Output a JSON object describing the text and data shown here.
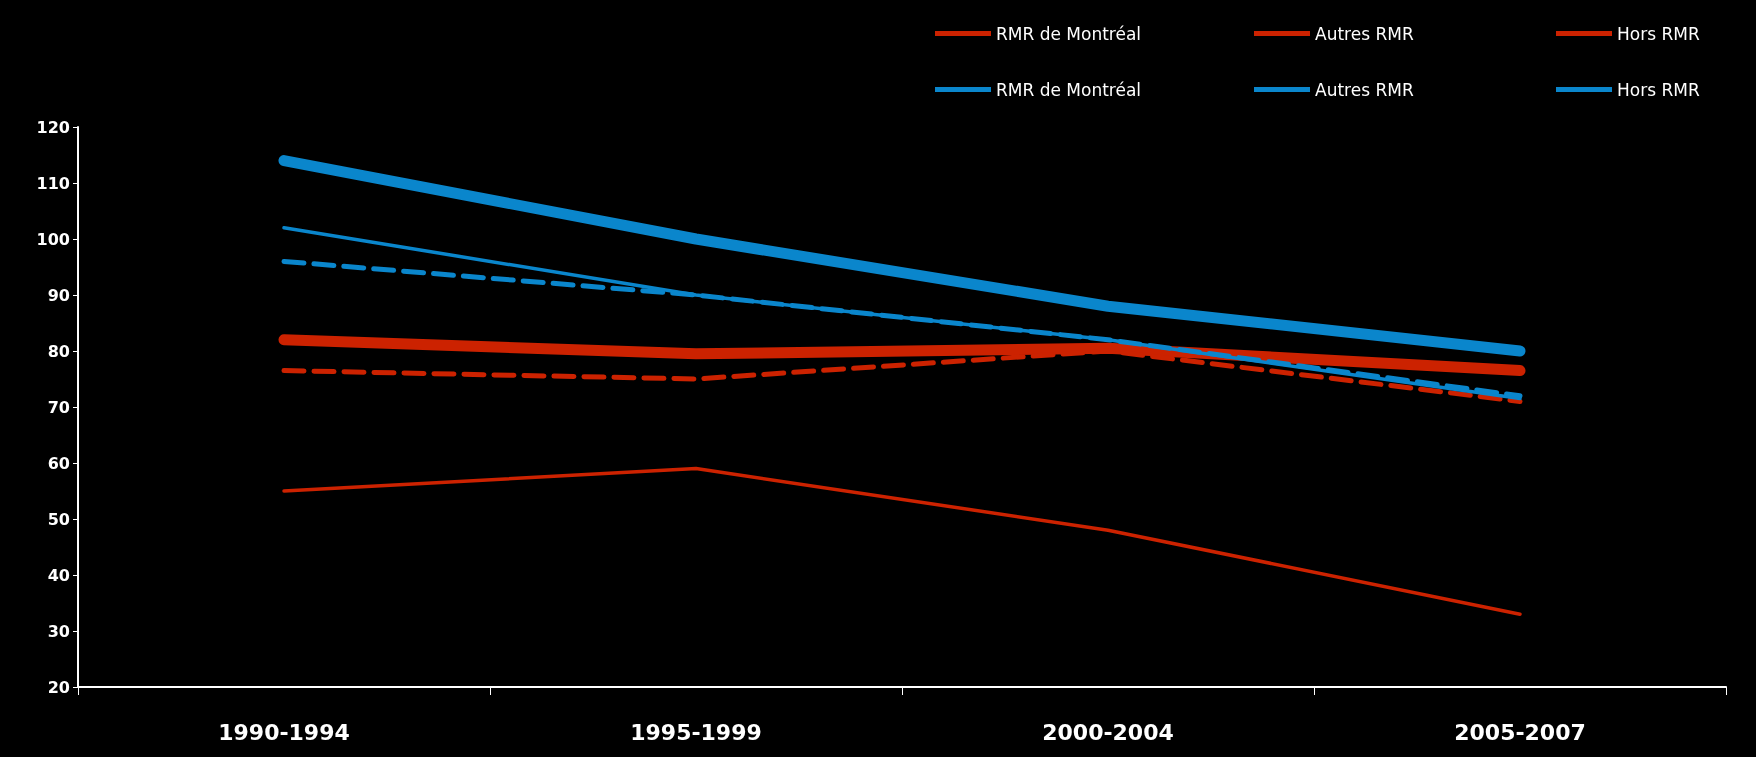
{
  "chart_data": {
    "type": "line",
    "categories": [
      "1990-1994",
      "1995-1999",
      "2000-2004",
      "2005-2007"
    ],
    "series": [
      {
        "name": "RMR de Montréal",
        "color": "#cc2200",
        "line_style": "solid",
        "values": [
          82,
          79.5,
          80.5,
          76.5
        ]
      },
      {
        "name": "Autres RMR",
        "color": "#cc2200",
        "line_style": "solid",
        "values": [
          55,
          59,
          48,
          33
        ]
      },
      {
        "name": "Hors RMR",
        "color": "#cc2200",
        "line_style": "dashed",
        "values": [
          76.5,
          75,
          80,
          71
        ]
      },
      {
        "name": "RMR de Montréal",
        "color": "#0a86cc",
        "line_style": "solid",
        "values": [
          114,
          100,
          88,
          80
        ]
      },
      {
        "name": "Autres RMR",
        "color": "#0a86cc",
        "line_style": "solid",
        "values": [
          102,
          90,
          82,
          71.5
        ]
      },
      {
        "name": "Hors RMR",
        "color": "#0a86cc",
        "line_style": "dashed",
        "values": [
          96,
          90,
          82,
          72
        ]
      }
    ],
    "ylim": [
      20,
      120
    ],
    "yticks": [
      20,
      30,
      40,
      50,
      60,
      70,
      80,
      90,
      100,
      110,
      120
    ],
    "grid": false,
    "legend": "top right",
    "marker": "none"
  }
}
